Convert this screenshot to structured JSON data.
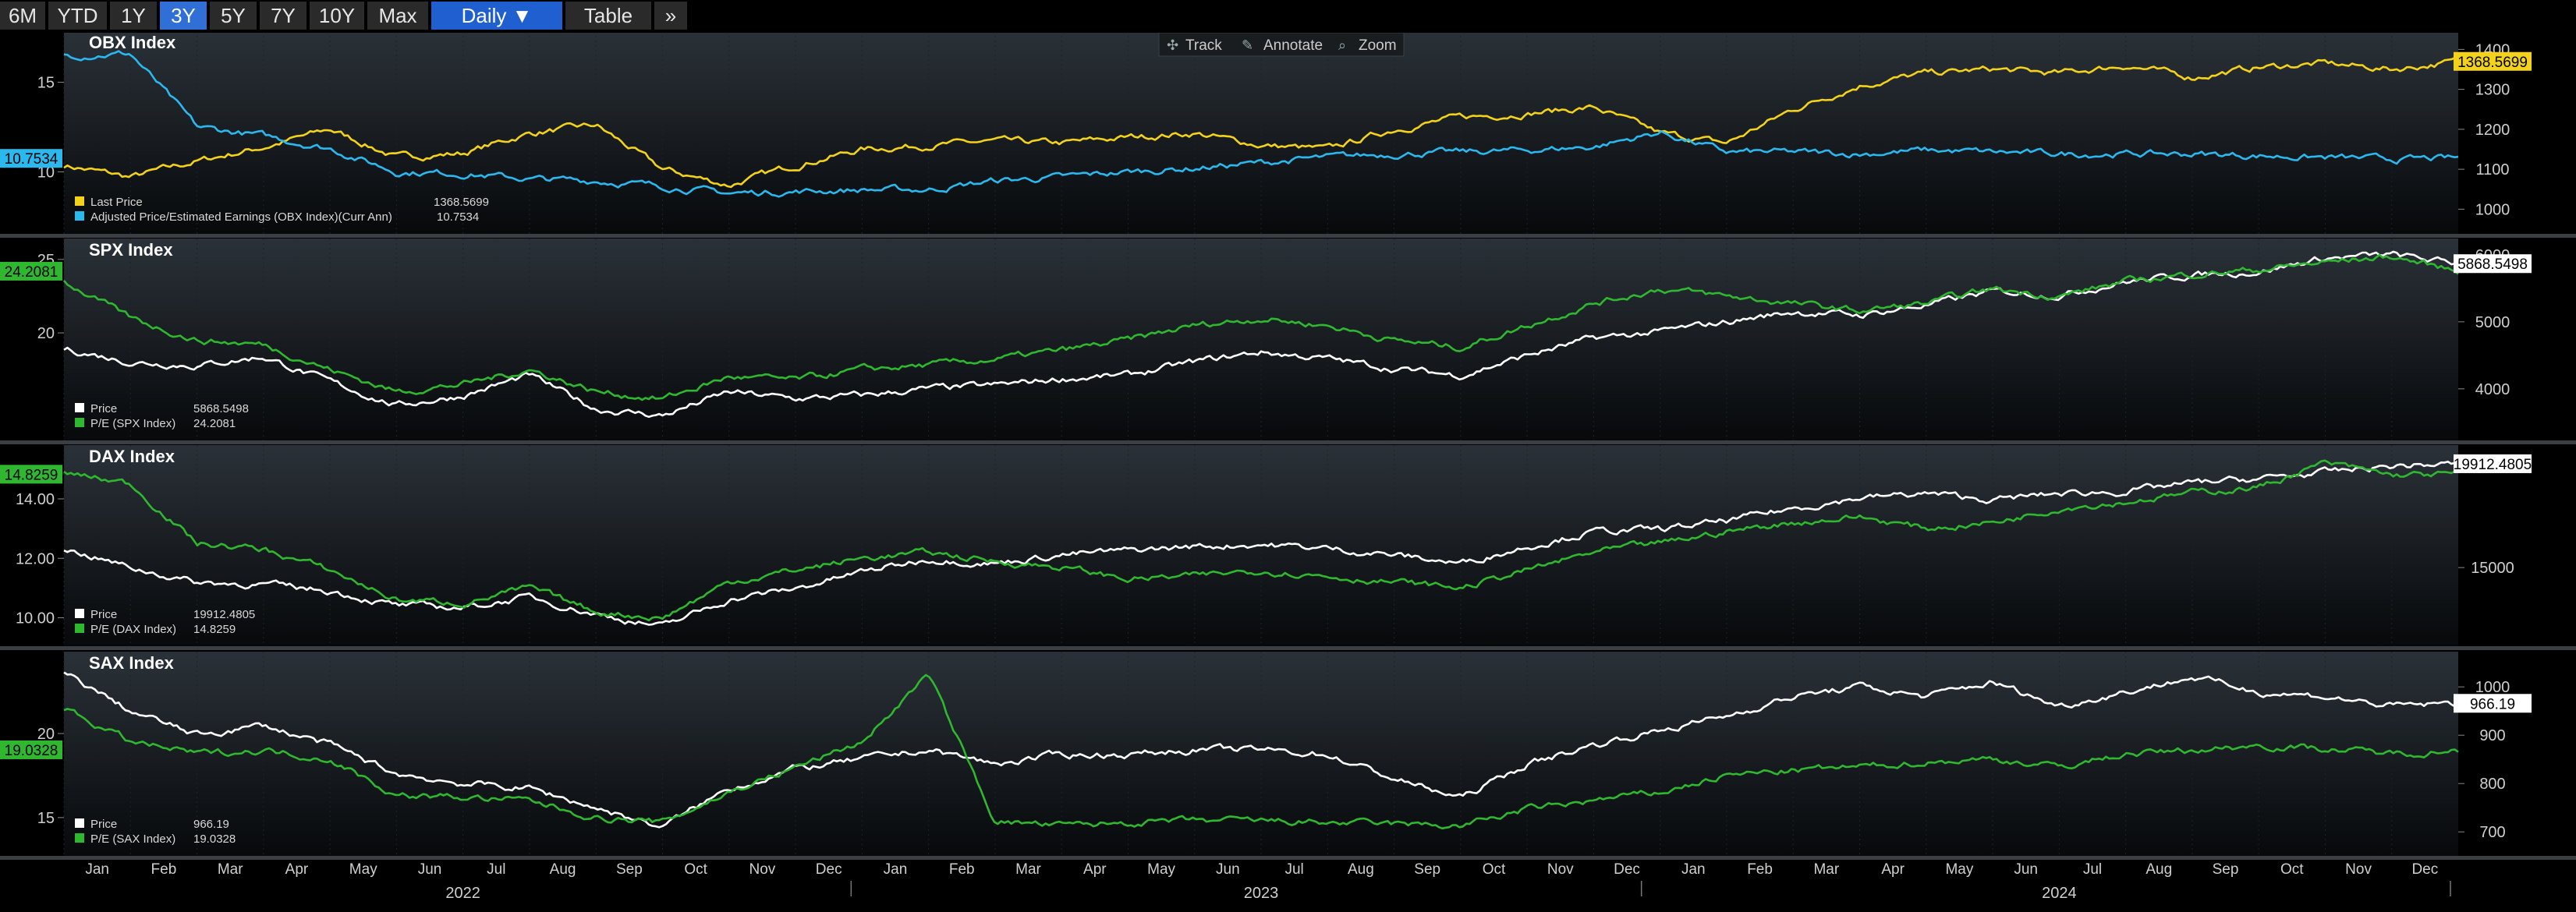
{
  "toolbar": {
    "ranges": [
      "6M",
      "YTD",
      "1Y",
      "3Y",
      "5Y",
      "7Y",
      "10Y",
      "Max"
    ],
    "active_range": "3Y",
    "frequency": "Daily ▼",
    "table": "Table",
    "more": "»"
  },
  "floating_toolbar": {
    "track": "Track",
    "annotate": "Annotate",
    "zoom": "Zoom"
  },
  "colors": {
    "yellow": "#f2d21a",
    "cyan": "#2ab8ee",
    "white": "#ffffff",
    "green": "#2fb82f"
  },
  "x_axis": {
    "months": [
      "Jan",
      "Feb",
      "Mar",
      "Apr",
      "May",
      "Jun",
      "Jul",
      "Aug",
      "Sep",
      "Oct",
      "Nov",
      "Dec",
      "Jan",
      "Feb",
      "Mar",
      "Apr",
      "May",
      "Jun",
      "Jul",
      "Aug",
      "Sep",
      "Oct",
      "Nov",
      "Dec",
      "Jan",
      "Feb",
      "Mar",
      "Apr",
      "May",
      "Jun",
      "Jul",
      "Aug",
      "Sep",
      "Oct",
      "Nov",
      "Dec"
    ],
    "years": [
      "2022",
      "2023",
      "2024"
    ]
  },
  "chart_data": [
    {
      "type": "line",
      "title": "OBX Index",
      "x_range": [
        "2022-01",
        "2024-12"
      ],
      "y_left_ticks": [
        10,
        15
      ],
      "y_right_ticks": [
        1000,
        1100,
        1200,
        1300,
        1400
      ],
      "y_left_lim": [
        6.8,
        17.5
      ],
      "y_right_lim": [
        950,
        1430
      ],
      "series": [
        {
          "name": "Last Price",
          "value_label": "1368.5699",
          "axis": "right",
          "color": "#f2d21a",
          "values": [
            1110,
            1080,
            1120,
            1155,
            1200,
            1130,
            1140,
            1190,
            1210,
            1100,
            1060,
            1110,
            1150,
            1160,
            1170,
            1165,
            1180,
            1190,
            1160,
            1150,
            1200,
            1230,
            1240,
            1255,
            1190,
            1165,
            1250,
            1310,
            1340,
            1350,
            1340,
            1360,
            1330,
            1355,
            1365,
            1350,
            1370
          ]
        },
        {
          "name": "Adjusted Price/Estimated Earnings (OBX Index)(Curr Ann)",
          "value_label": "10.7534",
          "axis": "left",
          "color": "#2ab8ee",
          "values": [
            16.5,
            16.6,
            12.5,
            12.0,
            11.3,
            10.0,
            9.9,
            9.6,
            9.5,
            9.2,
            8.8,
            8.9,
            9.0,
            9.0,
            9.5,
            9.7,
            10.0,
            10.2,
            10.5,
            10.8,
            11.0,
            11.1,
            11.2,
            11.4,
            12.2,
            11.1,
            11.1,
            11.0,
            11.2,
            11.1,
            11.0,
            11.0,
            11.0,
            10.9,
            10.8,
            10.7,
            10.75
          ]
        }
      ]
    },
    {
      "type": "line",
      "title": "SPX Index",
      "x_range": [
        "2022-01",
        "2024-12"
      ],
      "y_left_ticks": [
        20,
        25
      ],
      "y_right_ticks": [
        4000,
        5000,
        6000
      ],
      "y_left_lim": [
        13,
        26
      ],
      "y_right_lim": [
        3300,
        6150
      ],
      "series": [
        {
          "name": "Price",
          "value_label": "5868.5498",
          "axis": "right",
          "color": "#ffffff",
          "values": [
            4600,
            4400,
            4350,
            4480,
            4100,
            3750,
            3900,
            4200,
            3700,
            3600,
            3950,
            3850,
            3900,
            4000,
            4050,
            4150,
            4200,
            4400,
            4550,
            4450,
            4300,
            4200,
            4500,
            4750,
            4850,
            5000,
            5150,
            5100,
            5250,
            5450,
            5400,
            5600,
            5700,
            5750,
            5950,
            6000,
            5868
          ]
        },
        {
          "name": "P/E (SPX Index)",
          "value_label": "24.2081",
          "axis": "left",
          "color": "#2fb82f",
          "values": [
            23.5,
            21.0,
            19.5,
            19.2,
            17.5,
            16.0,
            16.5,
            17.5,
            16.0,
            15.5,
            17.0,
            16.8,
            17.5,
            17.8,
            18.2,
            18.8,
            19.5,
            20.5,
            21.0,
            20.5,
            19.5,
            19.0,
            20.5,
            22.0,
            23.0,
            22.5,
            22.0,
            21.5,
            22.0,
            23.0,
            22.5,
            23.5,
            24.0,
            24.3,
            24.8,
            25.2,
            24.2
          ]
        }
      ]
    },
    {
      "type": "line",
      "title": "DAX Index",
      "x_range": [
        "2022-01",
        "2024-12"
      ],
      "y_left_ticks": [
        10.0,
        12.0,
        14.0
      ],
      "y_right_ticks": [
        15000
      ],
      "y_left_lim": [
        9.2,
        15.6
      ],
      "y_right_lim": [
        11500,
        20500
      ],
      "series": [
        {
          "name": "Price",
          "value_label": "19912.4805",
          "axis": "right",
          "color": "#ffffff",
          "values": [
            15900,
            15000,
            14300,
            14200,
            13900,
            13200,
            13100,
            13600,
            12800,
            12200,
            13500,
            14000,
            14800,
            15400,
            15200,
            15600,
            15800,
            16000,
            16100,
            15900,
            15600,
            15200,
            16000,
            16700,
            16800,
            17200,
            17800,
            18300,
            18500,
            18200,
            18500,
            18600,
            19000,
            19200,
            19500,
            19800,
            19912
          ]
        },
        {
          "name": "P/E (DAX Index)",
          "value_label": "14.8259",
          "axis": "left",
          "color": "#2fb82f",
          "values": [
            14.9,
            14.5,
            12.5,
            12.3,
            11.6,
            10.6,
            10.5,
            11.0,
            10.2,
            10.0,
            11.2,
            11.6,
            12.0,
            12.2,
            11.9,
            11.7,
            11.3,
            11.4,
            11.6,
            11.4,
            11.2,
            11.0,
            11.6,
            12.2,
            12.5,
            12.9,
            13.2,
            13.4,
            13.0,
            13.2,
            13.7,
            13.9,
            14.2,
            14.4,
            15.2,
            14.8,
            14.83
          ]
        }
      ]
    },
    {
      "type": "line",
      "title": "SAX Index",
      "x_range": [
        "2022-01",
        "2024-12"
      ],
      "y_left_ticks": [
        15,
        20
      ],
      "y_right_ticks": [
        700,
        800,
        900,
        1000
      ],
      "y_left_lim": [
        13,
        24.5
      ],
      "y_right_lim": [
        660,
        1060
      ],
      "series": [
        {
          "name": "Price",
          "value_label": "966.19",
          "axis": "right",
          "color": "#ffffff",
          "values": [
            1030,
            950,
            900,
            920,
            880,
            820,
            800,
            790,
            750,
            710,
            790,
            830,
            850,
            870,
            840,
            860,
            860,
            870,
            870,
            860,
            810,
            770,
            840,
            880,
            910,
            940,
            980,
            1000,
            980,
            1010,
            960,
            990,
            1020,
            990,
            980,
            960,
            966
          ]
        },
        {
          "name": "P/E (SAX Index)",
          "value_label": "19.0328",
          "axis": "left",
          "color": "#2fb82f",
          "values": [
            21.5,
            19.5,
            18.8,
            19.0,
            18.5,
            16.3,
            16.2,
            16.0,
            15.0,
            14.7,
            16.5,
            18.0,
            19.5,
            23.5,
            14.8,
            14.5,
            14.7,
            14.8,
            14.8,
            14.7,
            14.6,
            14.5,
            15.5,
            16.0,
            16.5,
            17.5,
            17.8,
            18.0,
            18.3,
            18.5,
            18.0,
            18.8,
            19.0,
            19.3,
            19.1,
            18.8,
            19.03
          ]
        }
      ]
    }
  ]
}
